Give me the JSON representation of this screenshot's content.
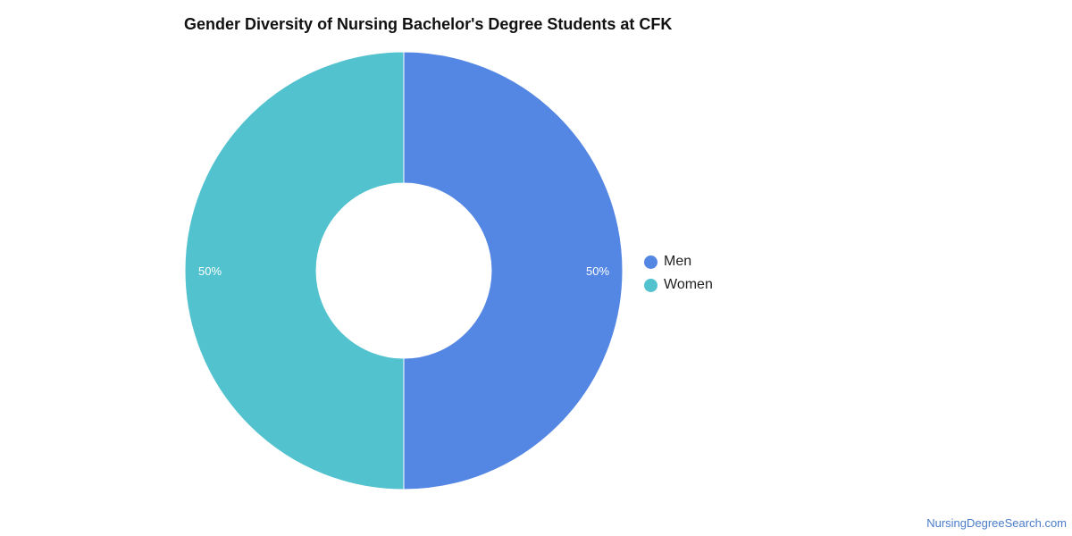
{
  "chart_data": {
    "type": "pie",
    "variant": "donut",
    "title": "Gender Diversity of Nursing Bachelor's Degree Students at CFK",
    "categories": [
      "Men",
      "Women"
    ],
    "values": [
      50,
      50
    ],
    "value_labels": [
      "50%",
      "50%"
    ],
    "colors": [
      "#5486e3",
      "#52c2cf"
    ],
    "legend": {
      "placement": "right",
      "entries": [
        "Men",
        "Women"
      ]
    }
  },
  "footer": {
    "source_link": "NursingDegreeSearch.com"
  }
}
